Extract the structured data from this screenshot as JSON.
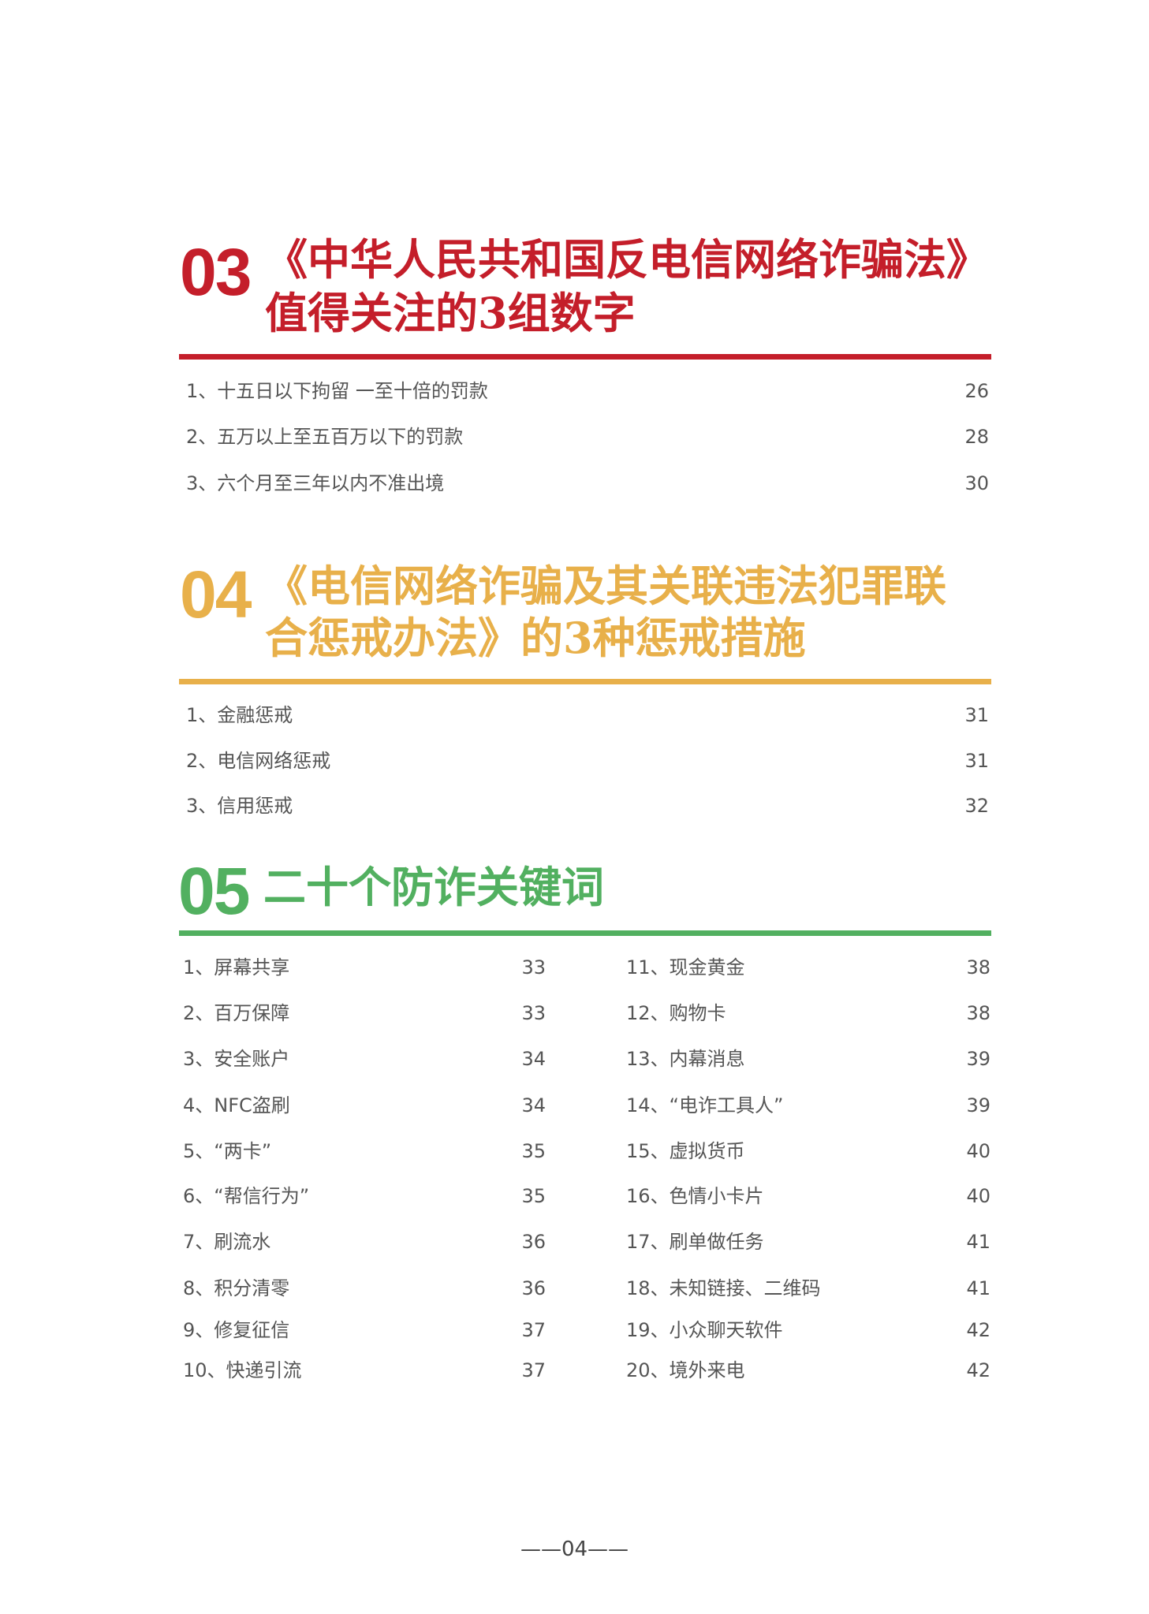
{
  "colors": {
    "s03": "#c41e2a",
    "s04": "#e8b04a",
    "s05": "#52b060"
  },
  "s03": {
    "number": "03",
    "title_line1": "《中华人民共和国反电信网络诈骗法》",
    "title_line2": "值得关注的3组数字",
    "items": [
      {
        "label": "1、十五日以下拘留 一至十倍的罚款",
        "page": "26"
      },
      {
        "label": "2、五万以上至五百万以下的罚款",
        "page": "28"
      },
      {
        "label": "3、六个月至三年以内不准出境",
        "page": "30"
      }
    ]
  },
  "s04": {
    "number": "04",
    "title_line1": "《电信网络诈骗及其关联违法犯罪联",
    "title_line2": "合惩戒办法》的3种惩戒措施",
    "items": [
      {
        "label": "1、金融惩戒",
        "page": "31"
      },
      {
        "label": "2、电信网络惩戒",
        "page": "31"
      },
      {
        "label": "3、信用惩戒",
        "page": "32"
      }
    ]
  },
  "s05": {
    "number": "05",
    "title": "二十个防诈关键词",
    "left": [
      {
        "label": "1、屏幕共享",
        "page": "33"
      },
      {
        "label": "2、百万保障",
        "page": "33"
      },
      {
        "label": "3、安全账户",
        "page": "34"
      },
      {
        "label": "4、NFC盗刷",
        "page": "34"
      },
      {
        "label": "5、“两卡”",
        "page": "35"
      },
      {
        "label": "6、“帮信行为”",
        "page": "35"
      },
      {
        "label": "7、刷流水",
        "page": "36"
      },
      {
        "label": "8、积分清零",
        "page": "36"
      },
      {
        "label": "9、修复征信",
        "page": "37"
      },
      {
        "label": "10、快递引流",
        "page": "37"
      }
    ],
    "right": [
      {
        "label": "11、现金黄金",
        "page": "38"
      },
      {
        "label": "12、购物卡",
        "page": "38"
      },
      {
        "label": "13、内幕消息",
        "page": "39"
      },
      {
        "label": "14、“电诈工具人”",
        "page": "39"
      },
      {
        "label": "15、虚拟货币",
        "page": "40"
      },
      {
        "label": "16、色情小卡片",
        "page": "40"
      },
      {
        "label": "17、刷单做任务",
        "page": "41"
      },
      {
        "label": "18、未知链接、二维码",
        "page": "41"
      },
      {
        "label": "19、小众聊天软件",
        "page": "42"
      },
      {
        "label": "20、境外来电",
        "page": "42"
      }
    ]
  },
  "footer": {
    "page": "——04——"
  }
}
